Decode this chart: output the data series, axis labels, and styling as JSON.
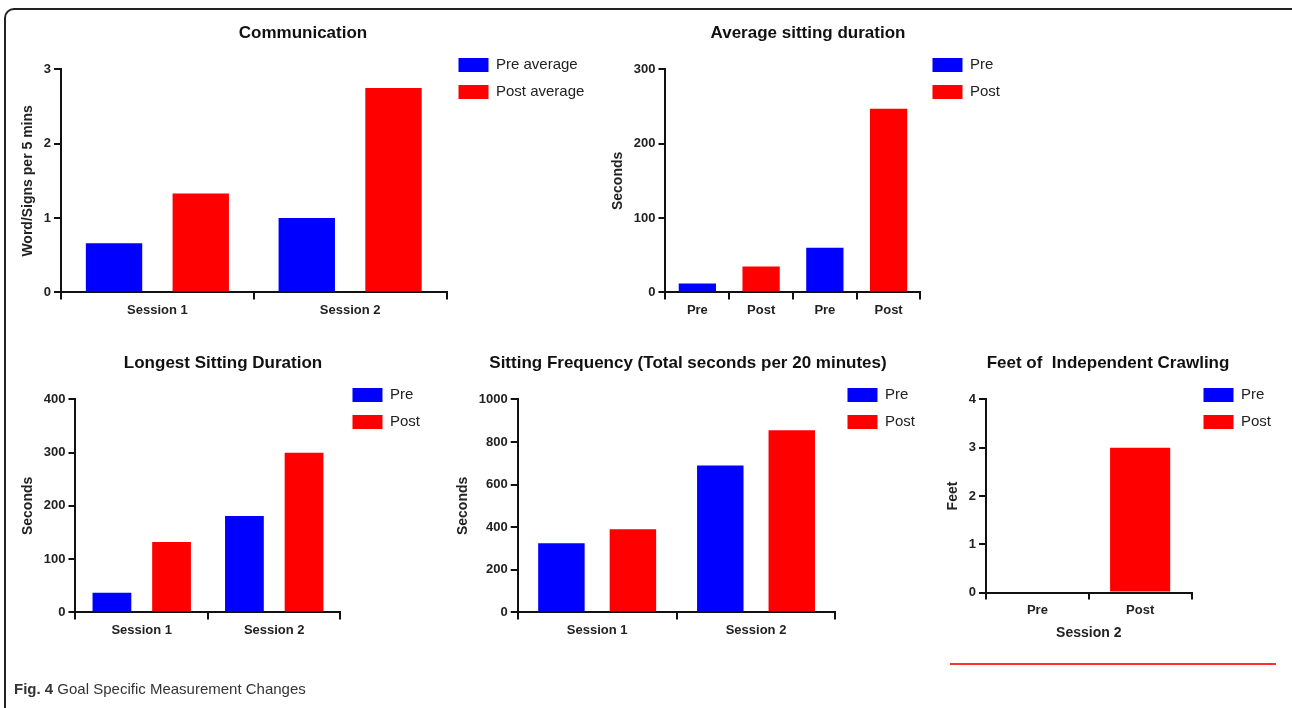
{
  "chart_data": [
    {
      "type": "bar",
      "title": "Communication",
      "ylabel": "Word/Signs per 5 mins",
      "categories": [
        "Session 1",
        "Session 2"
      ],
      "series": [
        {
          "name": "Pre average",
          "color": "#0000ff",
          "values": [
            0.66,
            1.0
          ]
        },
        {
          "name": "Post average",
          "color": "#ff0000",
          "values": [
            1.33,
            2.75
          ]
        }
      ],
      "ylim": [
        0,
        3
      ],
      "yticks": [
        0,
        1,
        2,
        3
      ],
      "grid": false,
      "legend": "top right",
      "annotations": [
        "Fig. 4 Goal Specific Measurement Changes"
      ]
    },
    {
      "type": "bar",
      "title": "Average sitting duration",
      "ylabel": "Seconds",
      "categories": [
        "Pre",
        "Post",
        "Pre",
        "Post"
      ],
      "series": [
        {
          "name": "Pre",
          "color": "#0000ff",
          "values": [
            12,
            null,
            60,
            null
          ]
        },
        {
          "name": "Post",
          "color": "#ff0000",
          "values": [
            null,
            35,
            null,
            247
          ]
        }
      ],
      "ylim": [
        0,
        300
      ],
      "yticks": [
        0,
        100,
        200,
        300
      ],
      "grid": false,
      "legend": "top right"
    },
    {
      "type": "bar",
      "title": "Longest Sitting Duration",
      "ylabel": "Seconds",
      "categories": [
        "Session 1",
        "Session 2"
      ],
      "series": [
        {
          "name": "Pre",
          "color": "#0000ff",
          "values": [
            37,
            181
          ]
        },
        {
          "name": "Post",
          "color": "#ff0000",
          "values": [
            132,
            300
          ]
        }
      ],
      "ylim": [
        0,
        400
      ],
      "yticks": [
        0,
        100,
        200,
        300,
        400
      ],
      "grid": false,
      "legend": "top right"
    },
    {
      "type": "bar",
      "title": "Sitting Frequency (Total seconds per 20 minutes)",
      "ylabel": "Seconds",
      "categories": [
        "Session 1",
        "Session 2"
      ],
      "series": [
        {
          "name": "Pre",
          "color": "#0000ff",
          "values": [
            325,
            690
          ]
        },
        {
          "name": "Post",
          "color": "#ff0000",
          "values": [
            390,
            855
          ]
        }
      ],
      "ylim": [
        0,
        1000
      ],
      "yticks": [
        0,
        200,
        400,
        600,
        800,
        1000
      ],
      "grid": false,
      "legend": "top right"
    },
    {
      "type": "bar",
      "title": "Feet of  Independent Crawling",
      "ylabel": "Feet",
      "xlabel": "Session 2",
      "categories": [
        "Pre",
        "Post"
      ],
      "series": [
        {
          "name": "Pre",
          "color": "#0000ff",
          "values": [
            0,
            null
          ]
        },
        {
          "name": "Post",
          "color": "#ff0000",
          "values": [
            null,
            3
          ]
        }
      ],
      "ylim": [
        0,
        4
      ],
      "yticks": [
        0,
        1,
        2,
        3,
        4
      ],
      "grid": false,
      "legend": "top right"
    }
  ]
}
